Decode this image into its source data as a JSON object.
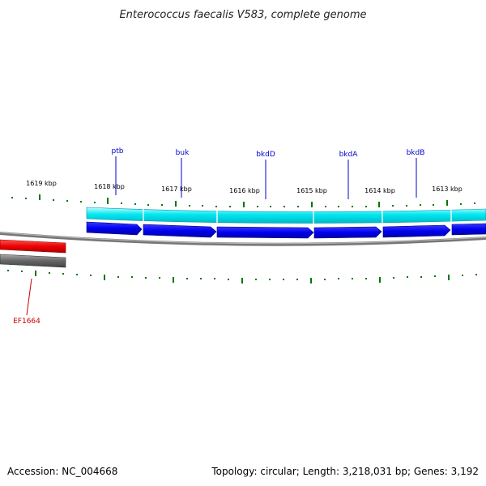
{
  "title": "Enterococcus faecalis V583, complete genome",
  "scale_labels": [
    {
      "text": "1619 kbp"
    },
    {
      "text": "1618 kbp"
    },
    {
      "text": "1617 kbp"
    },
    {
      "text": "1616 kbp"
    },
    {
      "text": "1615 kbp"
    },
    {
      "text": "1614 kbp"
    },
    {
      "text": "1613 kbp"
    }
  ],
  "gene_labels": [
    {
      "text": "ptb",
      "color": "#0000cc"
    },
    {
      "text": "buk",
      "color": "#0000cc"
    },
    {
      "text": "bkdD",
      "color": "#0000cc"
    },
    {
      "text": "bkdA",
      "color": "#0000cc"
    },
    {
      "text": "bkdB",
      "color": "#0000cc"
    },
    {
      "text": "EF1664",
      "color": "#cc0000"
    }
  ],
  "colors": {
    "cyan_track": "#00e5ee",
    "blue_genes": "#0000ee",
    "red_gene": "#ee0000",
    "gray_gene": "#666666",
    "backbone": "#888888",
    "ticks": "#007700"
  },
  "footer": {
    "accession": "Accession: NC_004668",
    "stats": "Topology: circular; Length: 3,218,031 bp; Genes: 3,192"
  }
}
